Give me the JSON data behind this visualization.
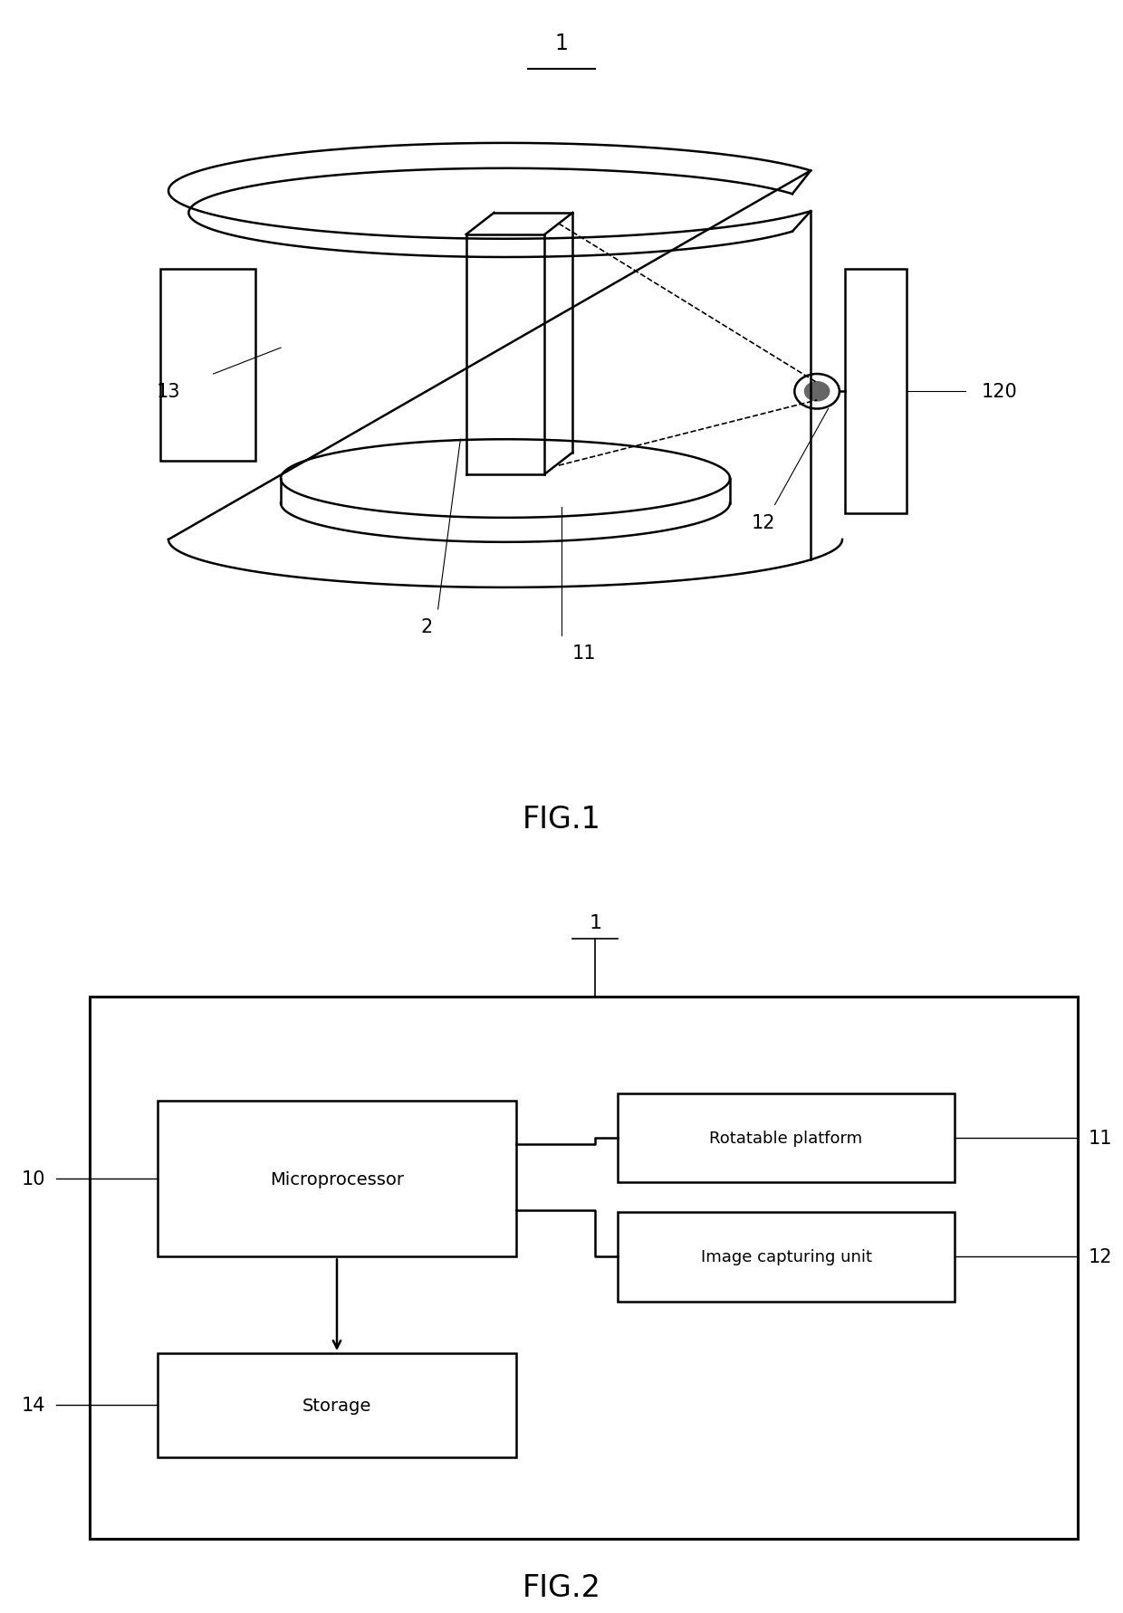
{
  "bg_color": "#ffffff",
  "fig_width": 12.4,
  "fig_height": 17.83,
  "fig1_label": "FIG.1",
  "fig2_label": "FIG.2",
  "labels": {
    "1": "1",
    "2": "2",
    "10": "10",
    "11": "11",
    "12": "12",
    "13": "13",
    "14": "14",
    "120": "120"
  },
  "box_labels": {
    "microprocessor": "Microprocessor",
    "rotatable_platform": "Rotatable platform",
    "image_capturing": "Image capturing unit",
    "storage": "Storage"
  },
  "line_color": "#000000",
  "text_color": "#000000",
  "font_size_label": 15,
  "font_size_fig": 24
}
